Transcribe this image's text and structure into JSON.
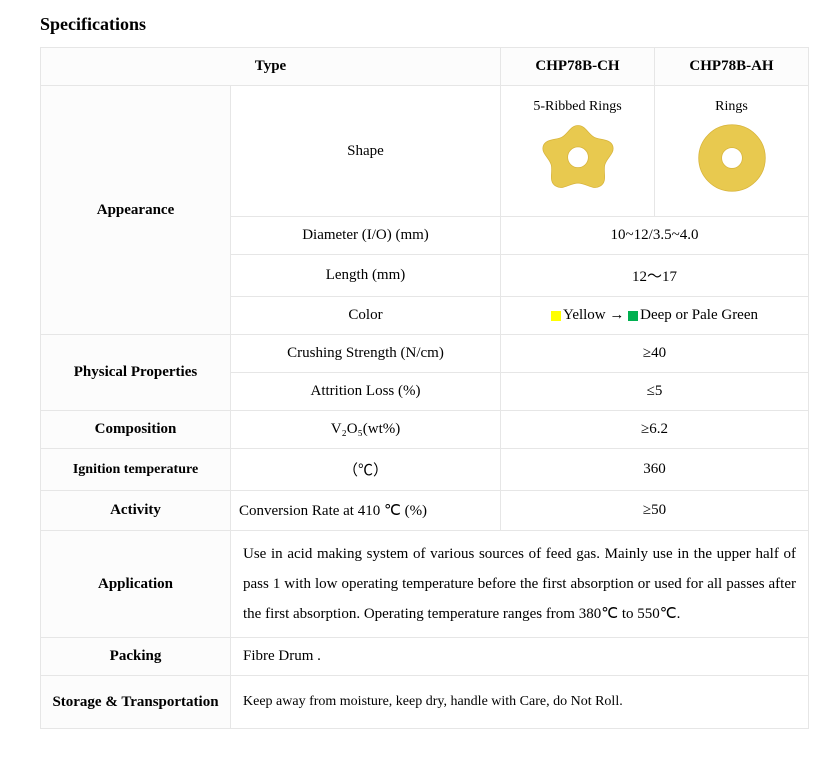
{
  "title": "Specifications",
  "columns": {
    "type_label": "Type",
    "model_a": "CHP78B-CH",
    "model_b": "CHP78B-AH"
  },
  "appearance": {
    "label": "Appearance",
    "shape_label": "Shape",
    "shape_a_caption": "5-Ribbed Rings",
    "shape_b_caption": "Rings",
    "shape_fill": "#e8c94f",
    "shape_stroke": "#d7b33a",
    "diameter_label": "Diameter (I/O) (mm)",
    "diameter_value": "10~12/3.5~4.0",
    "length_label": "Length (mm)",
    "length_value": "12～17",
    "color_label": "Color",
    "color_text_1": "Yellow → ",
    "color_text_2": "Deep or Pale Green",
    "swatch_yellow": "#ffff00",
    "swatch_green": "#00b050"
  },
  "physical": {
    "label": "Physical Properties",
    "crush_label": "Crushing Strength (N/cm)",
    "crush_value": "≥40",
    "attrition_label": "Attrition Loss (%)",
    "attrition_value": "≤5"
  },
  "composition": {
    "label": "Composition",
    "sub_label": "V₂O₅(wt%)",
    "value": "≥6.2"
  },
  "ignition": {
    "label": "Ignition temperature",
    "sub_label": "（℃）",
    "value": "360"
  },
  "activity": {
    "label": "Activity",
    "sub_label": "Conversion Rate at 410 ℃ (%)",
    "value": "≥50"
  },
  "application": {
    "label": "Application",
    "text": "Use in acid making system of various sources of feed gas. Mainly use in the upper half of pass 1 with low operating temperature before the first absorption or used for all passes after the first absorption. Operating temperature ranges from 380℃  to 550℃."
  },
  "packing": {
    "label": "Packing",
    "value": "Fibre Drum ."
  },
  "storage": {
    "label": "Storage & Transportation",
    "value": "Keep away from moisture, keep dry, handle with Care, do Not Roll."
  },
  "col_widths": {
    "c1": 190,
    "c2": 270,
    "c3": 154,
    "c4": 154
  }
}
